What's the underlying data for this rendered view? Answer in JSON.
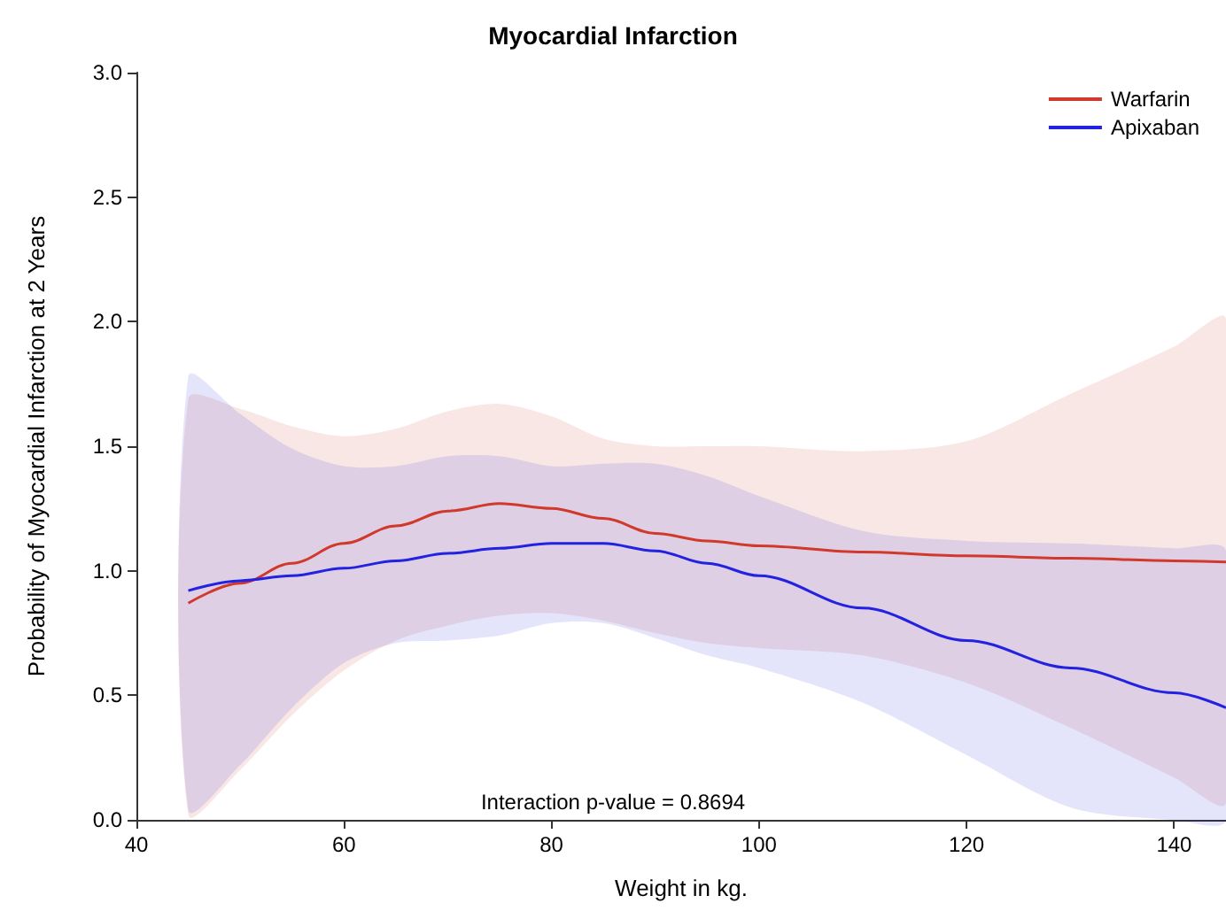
{
  "chart_data": {
    "type": "line",
    "title": "Myocardial Infarction",
    "xlabel": "Weight in kg.",
    "ylabel": "Probability of Myocardial Infarction at 2 Years",
    "x": [
      45,
      50,
      55,
      60,
      65,
      70,
      75,
      80,
      85,
      90,
      95,
      100,
      110,
      120,
      130,
      140,
      145
    ],
    "series": [
      {
        "name": "Warfarin",
        "color": "#d0392b",
        "values": [
          0.87,
          0.95,
          1.03,
          1.11,
          1.18,
          1.24,
          1.27,
          1.25,
          1.21,
          1.15,
          1.12,
          1.1,
          1.075,
          1.06,
          1.05,
          1.04,
          1.035
        ],
        "lower": [
          0.02,
          0.2,
          0.42,
          0.6,
          0.72,
          0.78,
          0.82,
          0.83,
          0.8,
          0.75,
          0.71,
          0.69,
          0.66,
          0.55,
          0.37,
          0.17,
          0.07
        ],
        "upper": [
          1.69,
          1.65,
          1.58,
          1.54,
          1.57,
          1.64,
          1.67,
          1.62,
          1.53,
          1.5,
          1.5,
          1.5,
          1.48,
          1.52,
          1.71,
          1.9,
          2.01
        ]
      },
      {
        "name": "Apixaban",
        "color": "#2222e0",
        "values": [
          0.92,
          0.96,
          0.98,
          1.01,
          1.04,
          1.07,
          1.09,
          1.11,
          1.11,
          1.08,
          1.03,
          0.98,
          0.85,
          0.72,
          0.61,
          0.51,
          0.45
        ],
        "lower": [
          0.04,
          0.22,
          0.45,
          0.63,
          0.71,
          0.72,
          0.74,
          0.79,
          0.79,
          0.73,
          0.66,
          0.61,
          0.47,
          0.26,
          0.05,
          0,
          0
        ],
        "upper": [
          1.78,
          1.63,
          1.49,
          1.42,
          1.42,
          1.46,
          1.46,
          1.42,
          1.43,
          1.43,
          1.38,
          1.3,
          1.16,
          1.12,
          1.11,
          1.09,
          1.08
        ]
      }
    ],
    "xlim": [
      40,
      145
    ],
    "xticks": [
      40,
      60,
      80,
      100,
      120,
      140
    ],
    "ylim": [
      0,
      3
    ],
    "yticks": [
      {
        "value": 0,
        "label": "0.0"
      },
      0.5,
      {
        "value": 1,
        "label": "1.0"
      },
      1.5,
      {
        "value": 2,
        "label": "2.0"
      },
      2.5,
      {
        "value": 3,
        "label": "3.0"
      }
    ],
    "grid": false,
    "legend": "top right",
    "marker": "none",
    "line_style": "solid",
    "annotations": [
      "Interaction p-value = 0.8694"
    ]
  }
}
